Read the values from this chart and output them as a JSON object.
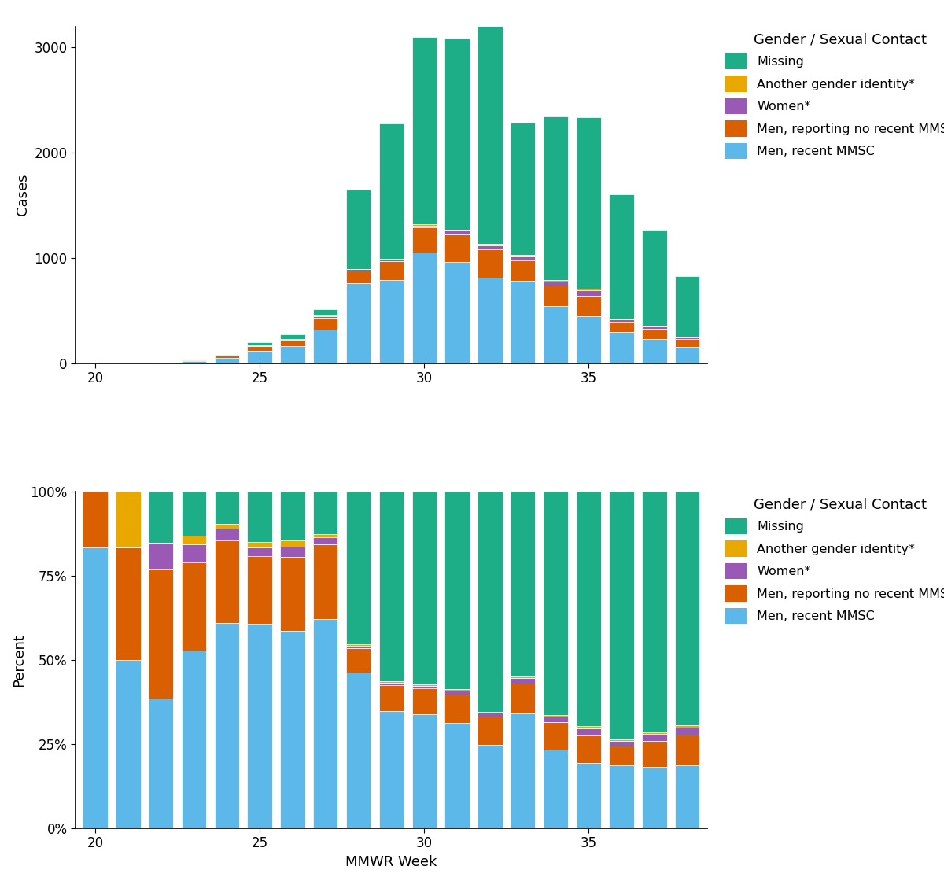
{
  "weeks": [
    20,
    21,
    22,
    23,
    24,
    25,
    26,
    27,
    28,
    29,
    30,
    31,
    32,
    33,
    34,
    35,
    36,
    37,
    38
  ],
  "categories_bottom_to_top": [
    "Men, recent MMSC",
    "Men, reporting no recent MMSC",
    "Women*",
    "Another gender identity*",
    "Missing"
  ],
  "colors": [
    "#5BB8E8",
    "#D95F00",
    "#9B59B6",
    "#E8A800",
    "#1DAD87"
  ],
  "counts": {
    "Men, recent MMSC": [
      10,
      3,
      5,
      20,
      50,
      120,
      160,
      320,
      760,
      790,
      1050,
      960,
      810,
      780,
      545,
      450,
      300,
      230,
      155
    ],
    "Men, reporting no recent MMSC": [
      2,
      2,
      5,
      10,
      20,
      40,
      60,
      115,
      120,
      180,
      240,
      265,
      275,
      200,
      195,
      195,
      95,
      95,
      75
    ],
    "Women*": [
      0,
      0,
      1,
      2,
      3,
      5,
      8,
      10,
      12,
      15,
      18,
      35,
      38,
      38,
      38,
      48,
      22,
      27,
      17
    ],
    "Another gender identity*": [
      0,
      1,
      0,
      1,
      1,
      3,
      5,
      6,
      6,
      10,
      12,
      12,
      12,
      12,
      12,
      17,
      7,
      7,
      6
    ],
    "Missing": [
      0,
      0,
      2,
      5,
      8,
      30,
      40,
      65,
      750,
      1285,
      1780,
      1810,
      2150,
      1255,
      1555,
      1630,
      1185,
      900,
      575
    ]
  },
  "legend_title": "Gender / Sexual Contact",
  "legend_labels_top_to_bottom": [
    "Missing",
    "Another gender identity*",
    "Women*",
    "Men, reporting no recent MMSC",
    "Men, recent MMSC"
  ],
  "xlabel": "MMWR Week",
  "ylabel_top": "Cases",
  "ylabel_bottom": "Percent",
  "yticks_top": [
    0,
    1000,
    2000,
    3000
  ],
  "ytick_labels_top": [
    "0",
    "1000",
    "2000",
    "3000"
  ],
  "yticks_bottom": [
    0,
    0.25,
    0.5,
    0.75,
    1.0
  ],
  "ytick_labels_bottom": [
    "0%",
    "25%",
    "50%",
    "75%",
    "100%"
  ]
}
